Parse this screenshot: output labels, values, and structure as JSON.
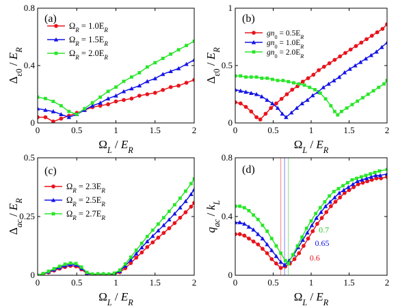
{
  "chart_data": [
    {
      "type": "line",
      "panel_label": "(a)",
      "xlabel": "Ω_L / E_R",
      "ylabel": "Δ_ε0 / E_R",
      "xlim": [
        0,
        2
      ],
      "ylim": [
        0,
        0.8
      ],
      "xticks": [
        0,
        0.5,
        1,
        1.5,
        2
      ],
      "yticks": [
        0,
        0.4,
        0.8
      ],
      "xtick_labels": [
        "0",
        "0.5",
        "1",
        "1.5",
        "2"
      ],
      "ytick_labels": [
        "0",
        "0.4",
        "0.8"
      ],
      "legend_position": "top-left",
      "x": [
        0,
        0.1,
        0.2,
        0.3,
        0.4,
        0.5,
        0.6,
        0.7,
        0.8,
        0.9,
        1.0,
        1.1,
        1.2,
        1.3,
        1.4,
        1.5,
        1.6,
        1.7,
        1.8,
        1.9,
        2.0
      ],
      "series": [
        {
          "name": "Ω_R = 1.0E_R",
          "color": "#e8141c",
          "marker": "circle",
          "values": [
            0.04,
            0.04,
            0.01,
            0.03,
            0.05,
            0.07,
            0.09,
            0.11,
            0.12,
            0.13,
            0.15,
            0.16,
            0.17,
            0.19,
            0.2,
            0.21,
            0.23,
            0.25,
            0.26,
            0.28,
            0.3
          ]
        },
        {
          "name": "Ω_R = 1.5E_R",
          "color": "#1414e6",
          "marker": "triangle",
          "values": [
            0.1,
            0.09,
            0.08,
            0.06,
            0.04,
            0.06,
            0.09,
            0.12,
            0.14,
            0.17,
            0.19,
            0.22,
            0.24,
            0.26,
            0.29,
            0.31,
            0.34,
            0.36,
            0.38,
            0.41,
            0.44
          ]
        },
        {
          "name": "Ω_R = 2.0E_R",
          "color": "#28e628",
          "marker": "square",
          "values": [
            0.18,
            0.17,
            0.15,
            0.12,
            0.08,
            0.06,
            0.1,
            0.14,
            0.18,
            0.22,
            0.25,
            0.29,
            0.32,
            0.35,
            0.39,
            0.42,
            0.45,
            0.48,
            0.51,
            0.54,
            0.57
          ]
        }
      ]
    },
    {
      "type": "line",
      "panel_label": "(b)",
      "xlabel": "Ω_L / E_R",
      "ylabel": "Δ_ε0 / E_R",
      "xlim": [
        0,
        2
      ],
      "ylim": [
        0,
        1
      ],
      "xticks": [
        0,
        0.5,
        1,
        1.5,
        2
      ],
      "yticks": [
        0,
        0.5,
        1
      ],
      "xtick_labels": [
        "0",
        "0.5",
        "1",
        "1.5",
        "2"
      ],
      "ytick_labels": [
        "0",
        "0.5",
        "1"
      ],
      "legend_position": "top-left",
      "series": [
        {
          "name": "gn_0 = 0.5E_R",
          "color": "#e8141c",
          "marker": "circle",
          "x": [
            0,
            0.07,
            0.14,
            0.21,
            0.28,
            0.33,
            0.4,
            0.47,
            0.54,
            0.61,
            0.68,
            0.75,
            0.82,
            0.89,
            0.96,
            1.03,
            1.1,
            1.17,
            1.24,
            1.31,
            1.38,
            1.45,
            1.52,
            1.59,
            1.66,
            1.73,
            1.8,
            1.87,
            1.94,
            2.0
          ],
          "values": [
            0.18,
            0.17,
            0.14,
            0.1,
            0.05,
            0.03,
            0.08,
            0.13,
            0.17,
            0.21,
            0.25,
            0.29,
            0.32,
            0.36,
            0.39,
            0.42,
            0.46,
            0.49,
            0.52,
            0.55,
            0.58,
            0.61,
            0.64,
            0.67,
            0.7,
            0.73,
            0.76,
            0.79,
            0.82,
            0.86
          ]
        },
        {
          "name": "gn_0 = 1.0E_R",
          "color": "#1414e6",
          "marker": "triangle",
          "x": [
            0,
            0.07,
            0.14,
            0.21,
            0.28,
            0.35,
            0.42,
            0.49,
            0.56,
            0.62,
            0.67,
            0.74,
            0.81,
            0.88,
            0.95,
            1.02,
            1.09,
            1.16,
            1.23,
            1.3,
            1.37,
            1.44,
            1.51,
            1.58,
            1.65,
            1.72,
            1.79,
            1.86,
            1.93,
            2.0
          ],
          "values": [
            0.29,
            0.28,
            0.27,
            0.26,
            0.25,
            0.23,
            0.2,
            0.17,
            0.13,
            0.08,
            0.05,
            0.09,
            0.13,
            0.17,
            0.2,
            0.24,
            0.27,
            0.31,
            0.34,
            0.37,
            0.4,
            0.44,
            0.47,
            0.5,
            0.53,
            0.56,
            0.59,
            0.62,
            0.66,
            0.7
          ]
        },
        {
          "name": "gn_0 = 2.0E_R",
          "color": "#28e628",
          "marker": "square",
          "x": [
            0,
            0.07,
            0.14,
            0.21,
            0.28,
            0.35,
            0.42,
            0.49,
            0.56,
            0.63,
            0.7,
            0.77,
            0.84,
            0.91,
            0.98,
            1.05,
            1.12,
            1.19,
            1.26,
            1.31,
            1.35,
            1.4,
            1.47,
            1.54,
            1.61,
            1.68,
            1.75,
            1.82,
            1.89,
            1.96,
            2.0
          ],
          "values": [
            0.41,
            0.41,
            0.4,
            0.4,
            0.4,
            0.39,
            0.39,
            0.38,
            0.37,
            0.37,
            0.36,
            0.35,
            0.34,
            0.33,
            0.31,
            0.29,
            0.26,
            0.21,
            0.15,
            0.1,
            0.07,
            0.1,
            0.13,
            0.16,
            0.19,
            0.22,
            0.25,
            0.28,
            0.31,
            0.34,
            0.37
          ]
        }
      ]
    },
    {
      "type": "line",
      "panel_label": "(c)",
      "xlabel": "Ω_L / E_R",
      "ylabel": "Δ_ac / E_R",
      "xlim": [
        0,
        2
      ],
      "ylim": [
        0,
        0.5
      ],
      "xticks": [
        0,
        0.5,
        1,
        1.5,
        2
      ],
      "yticks": [
        0,
        0.25,
        0.5
      ],
      "xtick_labels": [
        "0",
        "0.5",
        "1",
        "1.5",
        "2"
      ],
      "ytick_labels": [
        "0",
        "0.25",
        "0.5"
      ],
      "legend_position": "top-left",
      "x": [
        0,
        0.07,
        0.14,
        0.21,
        0.28,
        0.35,
        0.42,
        0.49,
        0.56,
        0.63,
        0.7,
        0.77,
        0.84,
        0.91,
        0.98,
        1.05,
        1.12,
        1.19,
        1.26,
        1.33,
        1.4,
        1.47,
        1.54,
        1.61,
        1.68,
        1.75,
        1.82,
        1.89,
        1.96,
        2.0
      ],
      "series": [
        {
          "name": "Ω_R = 2.3E_R",
          "color": "#e8141c",
          "marker": "circle",
          "values": [
            0.0,
            0.005,
            0.012,
            0.02,
            0.028,
            0.035,
            0.04,
            0.038,
            0.025,
            0.008,
            0.003,
            0.004,
            0.004,
            0.003,
            0.005,
            0.013,
            0.03,
            0.052,
            0.075,
            0.097,
            0.12,
            0.14,
            0.16,
            0.18,
            0.2,
            0.222,
            0.245,
            0.268,
            0.292,
            0.308
          ]
        },
        {
          "name": "Ω_R = 2.5E_R",
          "color": "#1414e6",
          "marker": "triangle",
          "values": [
            0.0,
            0.006,
            0.015,
            0.024,
            0.033,
            0.041,
            0.046,
            0.044,
            0.03,
            0.01,
            0.004,
            0.005,
            0.005,
            0.004,
            0.007,
            0.018,
            0.04,
            0.065,
            0.092,
            0.118,
            0.144,
            0.167,
            0.19,
            0.213,
            0.237,
            0.262,
            0.288,
            0.315,
            0.345,
            0.365
          ]
        },
        {
          "name": "Ω_R = 2.7E_R",
          "color": "#28e628",
          "marker": "square",
          "values": [
            0.0,
            0.007,
            0.017,
            0.028,
            0.038,
            0.047,
            0.052,
            0.05,
            0.035,
            0.012,
            0.005,
            0.006,
            0.006,
            0.005,
            0.009,
            0.022,
            0.048,
            0.077,
            0.107,
            0.136,
            0.165,
            0.192,
            0.218,
            0.245,
            0.272,
            0.3,
            0.328,
            0.358,
            0.39,
            0.41
          ]
        }
      ]
    },
    {
      "type": "line",
      "panel_label": "(d)",
      "xlabel": "Ω_L / E_R",
      "ylabel": "q_ac / k_L",
      "xlim": [
        0,
        2
      ],
      "ylim": [
        0,
        0.8
      ],
      "xticks": [
        0,
        0.5,
        1,
        1.5,
        2
      ],
      "yticks": [
        0,
        0.4,
        0.8
      ],
      "xtick_labels": [
        "0",
        "0.5",
        "1",
        "1.5",
        "2"
      ],
      "ytick_labels": [
        "0",
        "0.4",
        "0.8"
      ],
      "vertical_lines": [
        {
          "x": 0.6,
          "color": "#ff8080"
        },
        {
          "x": 0.65,
          "color": "#8080ff"
        },
        {
          "x": 0.7,
          "color": "#80e080"
        }
      ],
      "annotations": [
        {
          "text": "0.7",
          "color": "#28c828",
          "x": 1.1,
          "y": 0.29
        },
        {
          "text": "0.65",
          "color": "#1414e6",
          "x": 1.05,
          "y": 0.2
        },
        {
          "text": "0.6",
          "color": "#e8141c",
          "x": 0.98,
          "y": 0.1
        }
      ],
      "series": [
        {
          "name": "Ω_R = 2.3E_R",
          "color": "#e8141c",
          "marker": "circle",
          "x": [
            0,
            0.06,
            0.12,
            0.18,
            0.24,
            0.3,
            0.36,
            0.42,
            0.48,
            0.54,
            0.6,
            0.66,
            0.72,
            0.78,
            0.84,
            0.9,
            0.96,
            1.02,
            1.08,
            1.14,
            1.2,
            1.26,
            1.32,
            1.38,
            1.44,
            1.5,
            1.56,
            1.62,
            1.68,
            1.74,
            1.8,
            1.86,
            1.92,
            2.0
          ],
          "values": [
            0.28,
            0.28,
            0.27,
            0.25,
            0.23,
            0.21,
            0.18,
            0.15,
            0.11,
            0.08,
            0.05,
            0.06,
            0.08,
            0.11,
            0.15,
            0.2,
            0.25,
            0.3,
            0.35,
            0.39,
            0.43,
            0.47,
            0.5,
            0.53,
            0.56,
            0.58,
            0.6,
            0.62,
            0.63,
            0.64,
            0.65,
            0.66,
            0.66,
            0.67
          ]
        },
        {
          "name": "Ω_R = 2.5E_R",
          "color": "#1414e6",
          "marker": "triangle",
          "x": [
            0,
            0.06,
            0.12,
            0.18,
            0.24,
            0.3,
            0.36,
            0.42,
            0.48,
            0.54,
            0.6,
            0.65,
            0.71,
            0.77,
            0.83,
            0.89,
            0.95,
            1.01,
            1.07,
            1.13,
            1.19,
            1.25,
            1.31,
            1.37,
            1.43,
            1.49,
            1.55,
            1.61,
            1.67,
            1.73,
            1.79,
            1.85,
            1.91,
            2.0
          ],
          "values": [
            0.36,
            0.36,
            0.35,
            0.33,
            0.31,
            0.28,
            0.25,
            0.21,
            0.17,
            0.13,
            0.09,
            0.07,
            0.1,
            0.14,
            0.19,
            0.24,
            0.29,
            0.34,
            0.39,
            0.43,
            0.47,
            0.5,
            0.53,
            0.56,
            0.58,
            0.6,
            0.62,
            0.64,
            0.65,
            0.66,
            0.67,
            0.68,
            0.68,
            0.69
          ]
        },
        {
          "name": "Ω_R = 2.7E_R",
          "color": "#28e628",
          "marker": "square",
          "x": [
            0,
            0.06,
            0.12,
            0.18,
            0.24,
            0.3,
            0.36,
            0.42,
            0.48,
            0.54,
            0.6,
            0.66,
            0.7,
            0.76,
            0.82,
            0.88,
            0.94,
            1.0,
            1.06,
            1.12,
            1.18,
            1.24,
            1.3,
            1.36,
            1.42,
            1.48,
            1.54,
            1.6,
            1.66,
            1.72,
            1.78,
            1.84,
            1.9,
            2.0
          ],
          "values": [
            0.47,
            0.47,
            0.46,
            0.44,
            0.41,
            0.38,
            0.34,
            0.3,
            0.25,
            0.2,
            0.15,
            0.1,
            0.08,
            0.14,
            0.2,
            0.26,
            0.32,
            0.37,
            0.42,
            0.46,
            0.5,
            0.54,
            0.57,
            0.59,
            0.61,
            0.63,
            0.65,
            0.66,
            0.67,
            0.68,
            0.69,
            0.7,
            0.71,
            0.72
          ]
        }
      ]
    }
  ]
}
